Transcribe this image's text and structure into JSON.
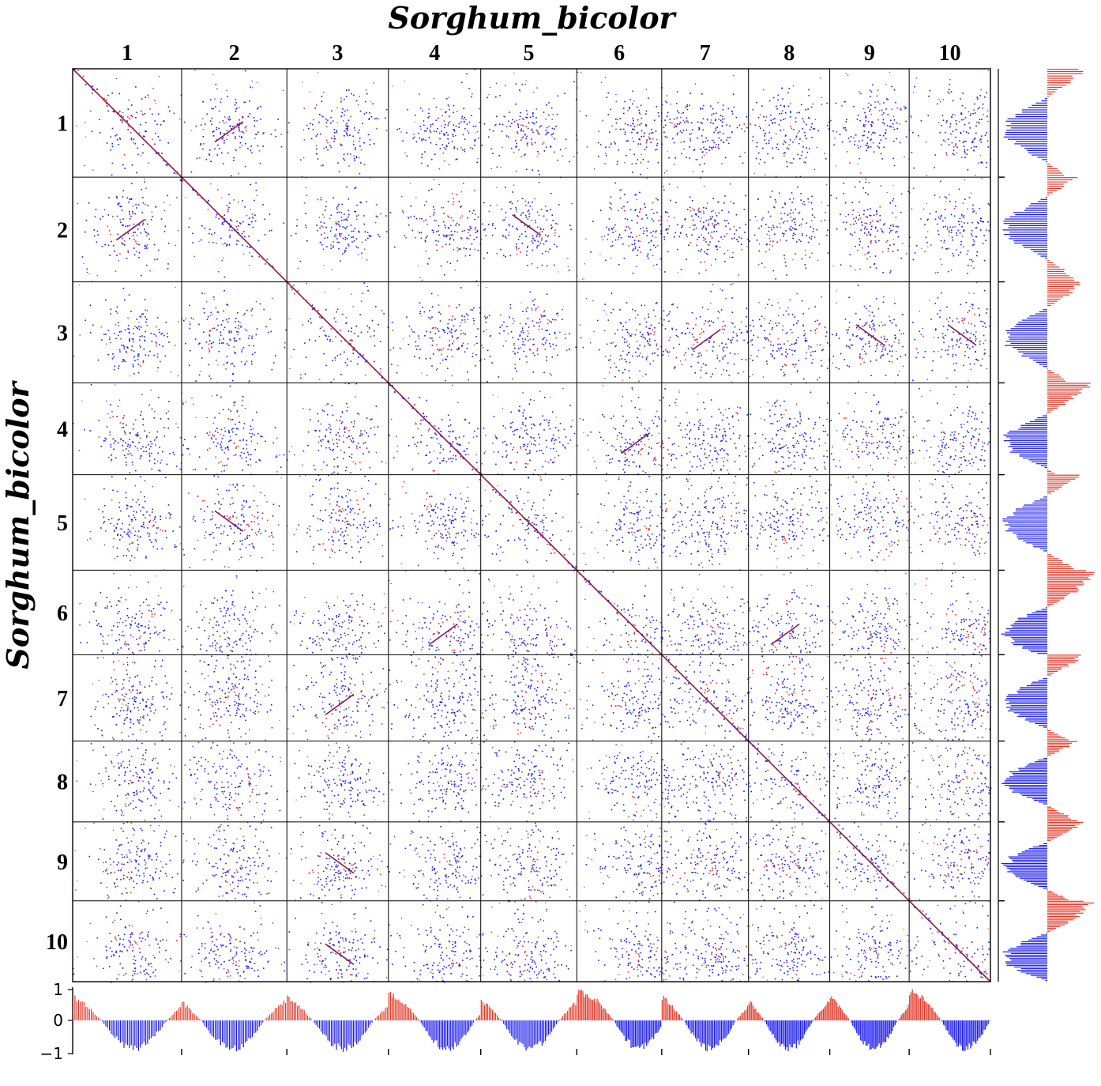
{
  "chart_data": {
    "type": "scatter",
    "subtype": "genome self-synteny dot plot with marginal ratio histograms",
    "title_top": "Sorghum_bicolor",
    "title_left": "Sorghum_bicolor",
    "chromosomes": [
      "1",
      "2",
      "3",
      "4",
      "5",
      "6",
      "7",
      "8",
      "9",
      "10"
    ],
    "chromosome_relative_lengths": [
      1.18,
      1.14,
      1.1,
      1.0,
      1.04,
      0.92,
      0.94,
      0.88,
      0.86,
      0.88
    ],
    "centromere_relative_position": [
      0.56,
      0.48,
      0.55,
      0.63,
      0.51,
      0.73,
      0.55,
      0.49,
      0.55,
      0.69
    ],
    "dot_colors": {
      "positive": "#e03a2a",
      "negative": "#1a1aee",
      "diagonal": "#8a1a4a"
    },
    "marginal_histogram": {
      "ylim": [
        -1,
        1
      ],
      "yticks": [
        "1",
        "0",
        "−1"
      ],
      "positive_color": "#e03a2a",
      "negative_color": "#1a1aee"
    },
    "grid": true
  }
}
